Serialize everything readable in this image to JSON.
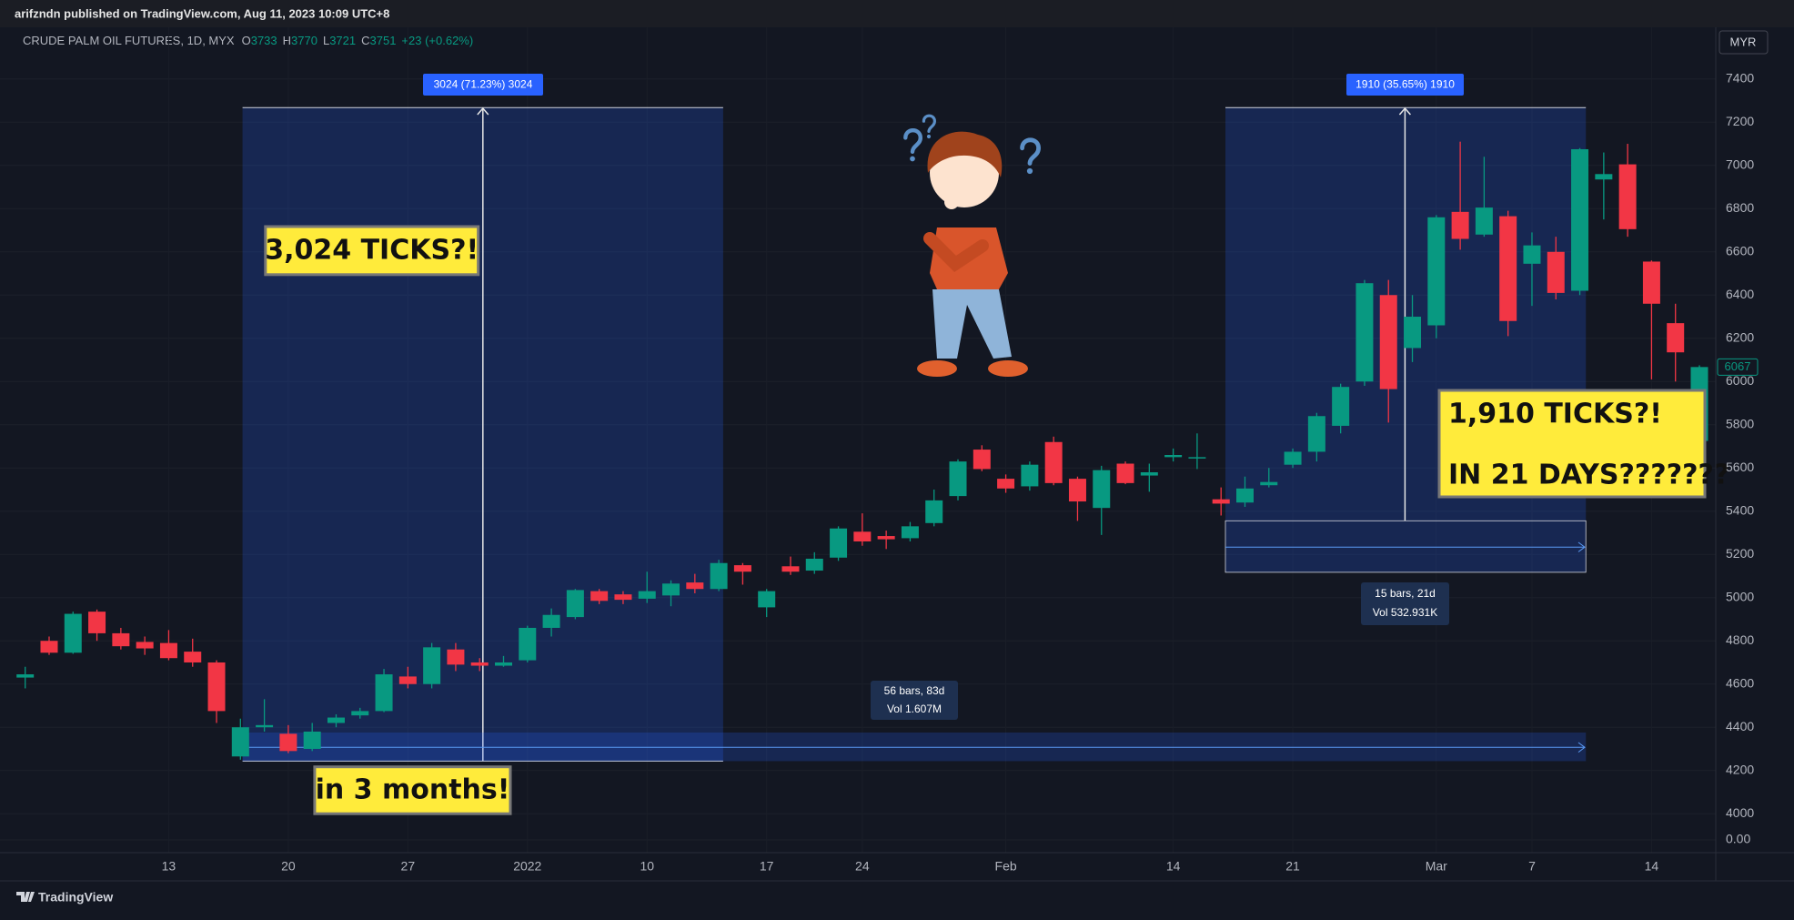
{
  "header": {
    "published": "arifzndn published on TradingView.com, Aug 11, 2023 10:09 UTC+8",
    "currency": "MYR",
    "brand": "TradingView"
  },
  "chart_data": {
    "type": "candlestick",
    "title": "CRUDE PALM OIL FUTURES, 1D, MYX",
    "ohlc_header": [
      {
        "label": "O",
        "value": 3733
      },
      {
        "label": "H",
        "value": 3770
      },
      {
        "label": "L",
        "value": 3721
      },
      {
        "label": "C",
        "value": 3751
      }
    ],
    "change": "+23 (+0.62%)",
    "categories": [
      null,
      null,
      null,
      null,
      null,
      null,
      "13",
      null,
      null,
      null,
      null,
      "20",
      null,
      null,
      null,
      null,
      "27",
      null,
      null,
      null,
      null,
      "2022",
      null,
      null,
      null,
      null,
      "10",
      null,
      null,
      null,
      null,
      "17",
      null,
      null,
      null,
      "24",
      null,
      null,
      null,
      null,
      null,
      "Feb",
      null,
      null,
      null,
      null,
      null,
      null,
      "14",
      null,
      null,
      null,
      null,
      "21",
      null,
      null,
      null,
      null,
      null,
      "Mar",
      null,
      null,
      null,
      "7",
      null,
      null,
      null,
      null,
      "14",
      null,
      null
    ],
    "open": [
      4630,
      4800,
      4745,
      4935,
      4835,
      4795,
      4790,
      4750,
      4700,
      4265,
      4400,
      4370,
      4300,
      4420,
      4455,
      4475,
      4635,
      4600,
      4760,
      4700,
      4685,
      4710,
      4860,
      4910,
      5030,
      5015,
      4995,
      5010,
      5070,
      5040,
      5150,
      4955,
      5145,
      5125,
      5185,
      5305,
      5285,
      5275,
      5345,
      5470,
      5685,
      5550,
      5515,
      5720,
      5550,
      5415,
      5620,
      5565,
      5650,
      5645,
      5455,
      5440,
      5520,
      5615,
      5675,
      5795,
      6000,
      6400,
      6155,
      6260,
      6785,
      6680,
      6765,
      6545,
      6600,
      6420,
      6935,
      7005,
      6555,
      6270,
      5725
    ],
    "high": [
      4680,
      4820,
      4935,
      4945,
      4860,
      4820,
      4850,
      4810,
      4710,
      4440,
      4530,
      4410,
      4420,
      4460,
      4490,
      4670,
      4680,
      4790,
      4790,
      4720,
      4730,
      4870,
      4950,
      5040,
      5040,
      5030,
      5120,
      5080,
      5110,
      5175,
      5160,
      5040,
      5190,
      5210,
      5330,
      5390,
      5310,
      5350,
      5500,
      5640,
      5705,
      5570,
      5630,
      5745,
      5560,
      5610,
      5630,
      5620,
      5690,
      5760,
      5510,
      5560,
      5600,
      5690,
      5855,
      5990,
      6470,
      6470,
      6400,
      6770,
      7110,
      7040,
      6790,
      6690,
      6670,
      7080,
      7060,
      7100,
      6560,
      6360,
      6075
    ],
    "low": [
      4580,
      4735,
      4740,
      4800,
      4760,
      4735,
      4710,
      4680,
      4420,
      4250,
      4380,
      4280,
      4290,
      4400,
      4440,
      4470,
      4580,
      4580,
      4660,
      4660,
      4680,
      4700,
      4820,
      4900,
      4970,
      4970,
      4975,
      4960,
      5020,
      5030,
      5060,
      4910,
      5105,
      5110,
      5170,
      5240,
      5225,
      5260,
      5330,
      5450,
      5585,
      5485,
      5495,
      5520,
      5355,
      5290,
      5525,
      5490,
      5630,
      5595,
      5380,
      5420,
      5510,
      5600,
      5630,
      5760,
      5980,
      5810,
      6090,
      6200,
      6610,
      6670,
      6210,
      6350,
      6380,
      6400,
      6750,
      6670,
      6010,
      6000,
      5720
    ],
    "close": [
      4645,
      4745,
      4925,
      4835,
      4775,
      4765,
      4720,
      4700,
      4475,
      4400,
      4410,
      4290,
      4380,
      4445,
      4475,
      4645,
      4600,
      4770,
      4690,
      4685,
      4700,
      4860,
      4920,
      5035,
      4985,
      4990,
      5030,
      5065,
      5040,
      5160,
      5120,
      5030,
      5120,
      5180,
      5320,
      5260,
      5270,
      5330,
      5450,
      5630,
      5595,
      5505,
      5615,
      5530,
      5445,
      5590,
      5530,
      5580,
      5660,
      5650,
      5435,
      5505,
      5535,
      5675,
      5840,
      5975,
      6455,
      5965,
      6300,
      6760,
      6660,
      6805,
      6280,
      6630,
      6410,
      7075,
      6960,
      6705,
      6360,
      6135,
      6067
    ],
    "up_color": "#089981",
    "down_color": "#f23645",
    "ylim": [
      3920,
      7520
    ],
    "yticks": [
      4000,
      4200,
      4400,
      4600,
      4800,
      5000,
      5200,
      5400,
      5600,
      5800,
      6000,
      6200,
      6400,
      6600,
      6800,
      7000,
      7200,
      7400
    ],
    "grid": true,
    "last_price": 6067,
    "volume_yticks": [
      {
        "value": 0,
        "label": "0.00"
      }
    ],
    "price_ranges": [
      "3024 (71.23%) 3024",
      "1910 (35.65%) 1910"
    ],
    "date_ranges": [
      {
        "bars": "56 bars, 83d",
        "volume": "Vol 1.607M"
      },
      {
        "bars": "15 bars, 21d",
        "volume": "Vol 532.931K"
      }
    ],
    "callouts": [
      "3,024 TICKS?!",
      "in 3 months!",
      "1,910 TICKS?!",
      "IN 21 DAYS???????"
    ]
  }
}
